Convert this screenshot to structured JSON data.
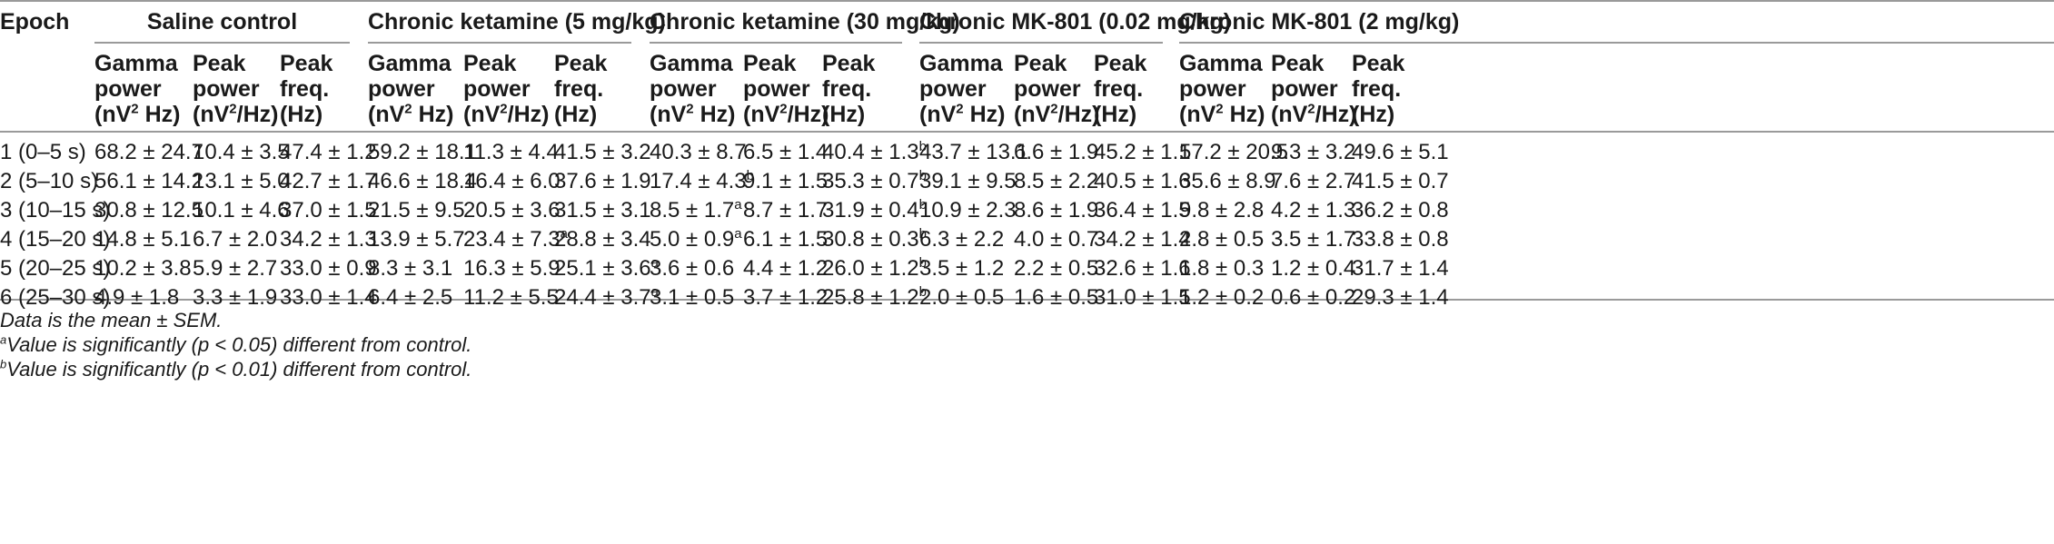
{
  "table": {
    "epoch_header": "Epoch",
    "groups": [
      "Saline control",
      "Chronic ketamine (5 mg/kg)",
      "Chronic ketamine (30 mg/kg)",
      "Chronic MK-801 (0.02 mg/kg)",
      "Chronic MK-801 (2 mg/kg)"
    ],
    "subheaders": [
      [
        "Gamma",
        "power",
        "(nV",
        "2",
        " Hz)"
      ],
      [
        "Peak",
        "power",
        "(nV",
        "2",
        "/Hz)"
      ],
      [
        "Peak",
        "freq.",
        "(Hz)",
        "",
        ""
      ]
    ],
    "rows": [
      {
        "epoch": "1 (0–5 s)",
        "cells": [
          [
            "68.2 ± 24.7",
            ""
          ],
          [
            "10.4 ± 3.5",
            ""
          ],
          [
            "47.4 ± 1.2",
            ""
          ],
          [
            "59.2 ± 18.1",
            ""
          ],
          [
            "11.3 ± 4.4",
            ""
          ],
          [
            "41.5 ± 3.2",
            ""
          ],
          [
            "40.3 ± 8.7",
            ""
          ],
          [
            "6.5 ± 1.4",
            ""
          ],
          [
            "40.4 ± 1.3",
            "b"
          ],
          [
            "43.7 ± 13.1",
            ""
          ],
          [
            "6.6 ± 1.9",
            ""
          ],
          [
            "45.2 ± 1.1",
            ""
          ],
          [
            "57.2 ± 20.5",
            ""
          ],
          [
            "9.3 ± 3.2",
            ""
          ],
          [
            "49.6 ± 5.1",
            ""
          ]
        ]
      },
      {
        "epoch": "2 (5–10 s)",
        "cells": [
          [
            "56.1 ± 14.2",
            ""
          ],
          [
            "13.1 ± 5.0",
            ""
          ],
          [
            "42.7 ± 1.7",
            ""
          ],
          [
            "46.6 ± 18.4",
            ""
          ],
          [
            "16.4 ± 6.0",
            ""
          ],
          [
            "37.6 ± 1.9",
            ""
          ],
          [
            "17.4 ± 4.3",
            "b"
          ],
          [
            "9.1 ± 1.5",
            ""
          ],
          [
            "35.3 ± 0.7",
            "b"
          ],
          [
            "39.1 ± 9.5",
            ""
          ],
          [
            "8.5 ± 2.2",
            ""
          ],
          [
            "40.5 ± 1.6",
            ""
          ],
          [
            "35.6 ± 8.9",
            ""
          ],
          [
            "7.6 ± 2.7",
            ""
          ],
          [
            "41.5 ± 0.7",
            ""
          ]
        ]
      },
      {
        "epoch": "3 (10–15 s)",
        "cells": [
          [
            "30.8 ± 12.5",
            ""
          ],
          [
            "10.1 ± 4.6",
            ""
          ],
          [
            "37.0 ± 1.5",
            ""
          ],
          [
            "21.5 ± 9.5",
            ""
          ],
          [
            "20.5 ± 3.6",
            ""
          ],
          [
            "31.5 ± 3.1",
            ""
          ],
          [
            "8.5 ± 1.7",
            "a"
          ],
          [
            "8.7 ± 1.7",
            ""
          ],
          [
            "31.9 ± 0.4",
            "b"
          ],
          [
            "10.9 ± 2.3",
            ""
          ],
          [
            "8.6 ± 1.9",
            ""
          ],
          [
            "36.4 ± 1.5",
            ""
          ],
          [
            "9.8 ± 2.8",
            ""
          ],
          [
            "4.2 ± 1.3",
            ""
          ],
          [
            "36.2 ± 0.8",
            ""
          ]
        ]
      },
      {
        "epoch": "4 (15–20 s)",
        "cells": [
          [
            "14.8 ± 5.1",
            ""
          ],
          [
            "6.7 ± 2.0",
            ""
          ],
          [
            "34.2 ± 1.3",
            ""
          ],
          [
            "13.9 ± 5.7",
            ""
          ],
          [
            "23.4 ± 7.3",
            "a"
          ],
          [
            "28.8 ± 3.4",
            ""
          ],
          [
            "5.0 ± 0.9",
            "a"
          ],
          [
            "6.1 ± 1.5",
            ""
          ],
          [
            "30.8 ± 0.3",
            "b"
          ],
          [
            "6.3 ± 2.2",
            ""
          ],
          [
            "4.0 ± 0.7",
            ""
          ],
          [
            "34.2 ± 1.4",
            ""
          ],
          [
            "2.8 ± 0.5",
            ""
          ],
          [
            "3.5 ± 1.7",
            ""
          ],
          [
            "33.8 ± 0.8",
            ""
          ]
        ]
      },
      {
        "epoch": "5 (20–25 s)",
        "cells": [
          [
            "10.2 ± 3.8",
            ""
          ],
          [
            "5.9 ± 2.7",
            ""
          ],
          [
            "33.0 ± 0.9",
            ""
          ],
          [
            "8.3 ± 3.1",
            ""
          ],
          [
            "16.3 ± 5.9",
            ""
          ],
          [
            "25.1 ± 3.6",
            "a"
          ],
          [
            "3.6 ± 0.6",
            ""
          ],
          [
            "4.4 ± 1.2",
            ""
          ],
          [
            "26.0 ± 1.2",
            "b"
          ],
          [
            "3.5 ± 1.2",
            ""
          ],
          [
            "2.2 ± 0.5",
            ""
          ],
          [
            "32.6 ± 1.6",
            ""
          ],
          [
            "1.8 ± 0.3",
            ""
          ],
          [
            "1.2 ± 0.4",
            ""
          ],
          [
            "31.7 ± 1.4",
            ""
          ]
        ]
      },
      {
        "epoch": "6 (25–30 s)",
        "cells": [
          [
            "4.9 ± 1.8",
            ""
          ],
          [
            "3.3 ± 1.9",
            ""
          ],
          [
            "33.0 ± 1.4",
            ""
          ],
          [
            "6.4 ± 2.5",
            ""
          ],
          [
            "11.2 ± 5.5",
            ""
          ],
          [
            "24.4 ± 3.7",
            "a"
          ],
          [
            "3.1 ± 0.5",
            ""
          ],
          [
            "3.7 ± 1.2",
            ""
          ],
          [
            "25.8 ± 1.2",
            "b"
          ],
          [
            "2.0 ± 0.5",
            ""
          ],
          [
            "1.6 ± 0.5",
            ""
          ],
          [
            "31.0 ± 1.5",
            ""
          ],
          [
            "1.2 ± 0.2",
            ""
          ],
          [
            "0.6 ± 0.2",
            ""
          ],
          [
            "29.3 ± 1.4",
            ""
          ]
        ]
      }
    ]
  },
  "notes": [
    {
      "sup": "",
      "text": "Data is the mean ± SEM."
    },
    {
      "sup": "a",
      "text": "Value is significantly (p < 0.05) different from control."
    },
    {
      "sup": "b",
      "text": "Value is significantly (p < 0.01) different from control."
    }
  ]
}
